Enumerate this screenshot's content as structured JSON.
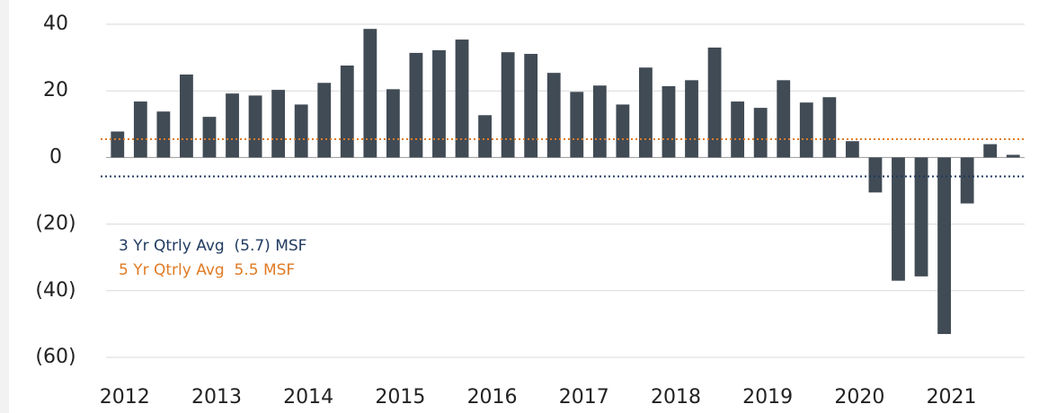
{
  "chart_data": {
    "type": "bar",
    "categories": [
      "2012",
      null,
      null,
      null,
      "2013",
      null,
      null,
      null,
      "2014",
      null,
      null,
      null,
      "2015",
      null,
      null,
      null,
      "2016",
      null,
      null,
      null,
      "2017",
      null,
      null,
      null,
      "2018",
      null,
      null,
      null,
      "2019",
      null,
      null,
      null,
      "2020",
      null,
      null,
      null,
      "2021",
      null,
      null,
      null
    ],
    "values": [
      7.8,
      16.8,
      13.8,
      24.9,
      12.2,
      19.2,
      18.6,
      20.3,
      15.9,
      22.4,
      27.6,
      38.6,
      20.5,
      31.4,
      32.2,
      35.4,
      12.7,
      31.6,
      31.1,
      25.4,
      19.7,
      21.6,
      15.9,
      27.0,
      21.4,
      23.2,
      33.0,
      16.8,
      14.9,
      23.2,
      16.5,
      18.1,
      4.9,
      -10.5,
      -37.0,
      -35.7,
      -53.0,
      -13.8,
      4.0,
      0.8
    ],
    "color": "#414b55",
    "ylim": [
      -60,
      40
    ],
    "yticks": [
      {
        "value": -60,
        "label": "(60)"
      },
      {
        "value": -40,
        "label": "(40)"
      },
      {
        "value": -20,
        "label": "(20)"
      },
      0,
      20,
      40
    ],
    "grid": true,
    "reference_lines": [
      {
        "label": "3 Yr Qtrly Avg  (5.7) MSF",
        "value": -5.7,
        "color": "#1f3a5f"
      },
      {
        "label": "5 Yr Qtrly Avg  5.5 MSF",
        "value": 5.5,
        "color": "#e07b24"
      }
    ]
  }
}
